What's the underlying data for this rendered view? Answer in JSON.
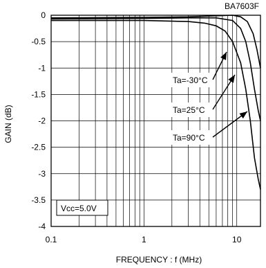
{
  "chart_data": {
    "type": "line",
    "title": "BA7603F",
    "xlabel": "FREQUENCY : f (MHz)",
    "ylabel": "GAIN (dB)",
    "xscale": "log",
    "xlim": [
      0.1,
      18
    ],
    "ylim": [
      -4,
      0
    ],
    "grid": true,
    "x_ticks": [
      "0.1",
      "1",
      "10"
    ],
    "y_ticks": [
      "0",
      "-0.5",
      "-1",
      "-1.5",
      "-2",
      "-2.5",
      "-3",
      "-3.5",
      "-4"
    ],
    "annotation": "Vcc=5.0V",
    "series": [
      {
        "name": "Ta=-30°C",
        "x": [
          0.1,
          1,
          3,
          6,
          9,
          11,
          13,
          15,
          16.5,
          18
        ],
        "y": [
          -0.05,
          -0.04,
          -0.03,
          -0.01,
          0.0,
          -0.03,
          -0.12,
          -0.35,
          -0.65,
          -1.0
        ]
      },
      {
        "name": "Ta=25°C",
        "x": [
          0.1,
          1,
          3,
          6,
          9,
          11,
          12.5,
          14,
          15.5,
          17,
          18
        ],
        "y": [
          -0.07,
          -0.06,
          -0.05,
          -0.05,
          -0.1,
          -0.25,
          -0.5,
          -0.9,
          -1.4,
          -1.8,
          -2.0
        ]
      },
      {
        "name": "Ta=90°C",
        "x": [
          0.1,
          1,
          3,
          4.5,
          6,
          7.5,
          9,
          11,
          12.5,
          14,
          15.5,
          17,
          18
        ],
        "y": [
          -0.1,
          -0.1,
          -0.12,
          -0.15,
          -0.2,
          -0.3,
          -0.5,
          -0.9,
          -1.4,
          -2.0,
          -2.7,
          -3.1,
          -3.3
        ]
      }
    ]
  }
}
